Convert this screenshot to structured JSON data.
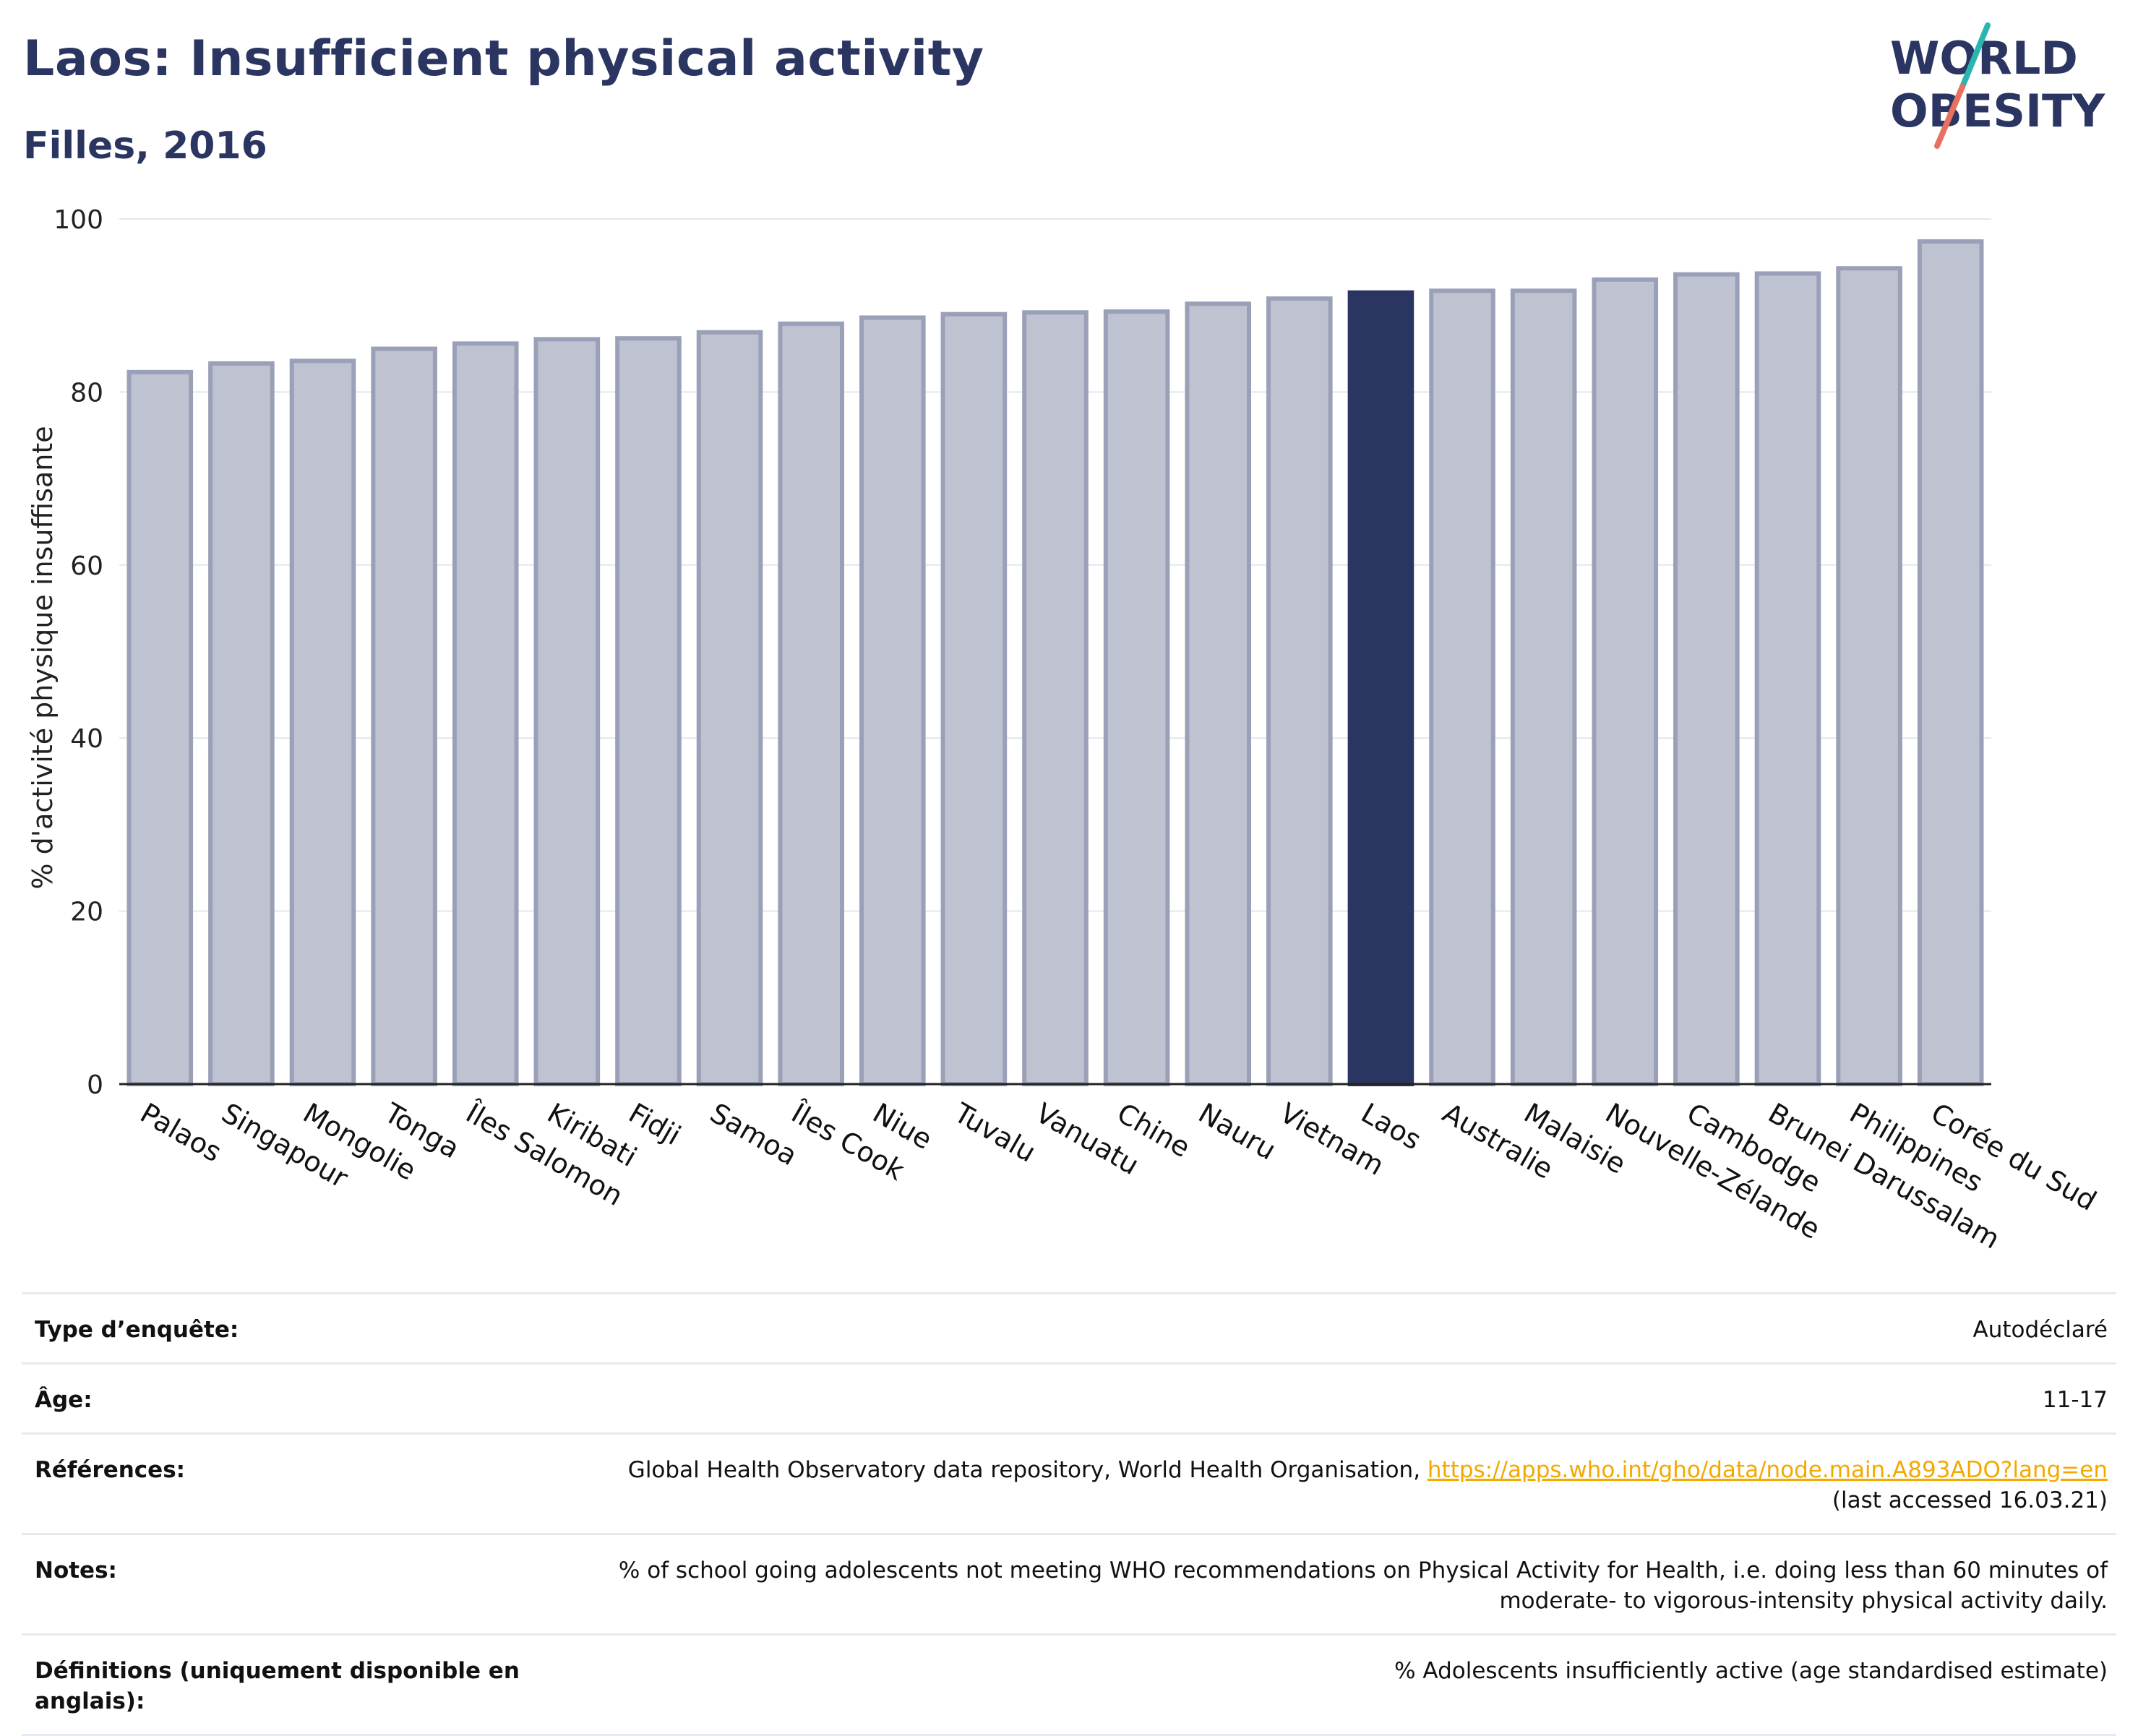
{
  "header": {
    "title": "Laos: Insufficient physical activity",
    "subtitle": "Filles, 2016",
    "logo_line1": "WORLD",
    "logo_line2": "OBESITY"
  },
  "colors": {
    "bar": "#bfc2d0",
    "bar_border": "#9aa0b8",
    "highlight": "#2b3561",
    "grid": "#e4e6ee",
    "logo_text": "#2b3561",
    "logo_slash_teal": "#2bb5b0",
    "logo_slash_coral": "#e8705f",
    "link": "#f2a900"
  },
  "chart_data": {
    "type": "bar",
    "title": "Laos: Insufficient physical activity",
    "subtitle": "Filles, 2016",
    "xlabel": "",
    "ylabel": "% d'activité physique insuffisante",
    "ylim": [
      0,
      100
    ],
    "yticks": [
      0,
      20,
      40,
      60,
      80,
      100
    ],
    "grid": true,
    "highlight": "Laos",
    "categories": [
      "Palaos",
      "Singapour",
      "Mongolie",
      "Tonga",
      "Îles Salomon",
      "Kiribati",
      "Fidji",
      "Samoa",
      "Îles Cook",
      "Niue",
      "Tuvalu",
      "Vanuatu",
      "Chine",
      "Nauru",
      "Vietnam",
      "Laos",
      "Australie",
      "Malaisie",
      "Nouvelle-Zélande",
      "Cambodge",
      "Brunei Darussalam",
      "Philippines",
      "Corée du Sud"
    ],
    "values": [
      82.3,
      83.3,
      83.6,
      85.0,
      85.6,
      86.1,
      86.2,
      86.9,
      87.9,
      88.6,
      89.0,
      89.2,
      89.3,
      90.2,
      90.8,
      91.5,
      91.7,
      91.7,
      93.0,
      93.6,
      93.7,
      94.3,
      97.4
    ]
  },
  "meta": {
    "survey_label": "Type d’enquête:",
    "survey_value": "Autodéclaré",
    "age_label": "Âge:",
    "age_value": "11-17",
    "refs_label": "Références:",
    "refs_text": "Global Health Observatory data repository, World Health Organisation, ",
    "refs_link": "https://apps.who.int/gho/data/node.main.A893ADO?lang=en",
    "refs_accessed": "(last accessed 16.03.21)",
    "notes_label": "Notes:",
    "notes_value": "% of school going adolescents not meeting WHO recommendations on Physical Activity for Health, i.e. doing less than 60 minutes of moderate- to vigorous-intensity physical activity daily.",
    "defs_label": "Définitions (uniquement disponible en anglais):",
    "defs_value": "% Adolescents insufficiently active (age standardised estimate)"
  }
}
